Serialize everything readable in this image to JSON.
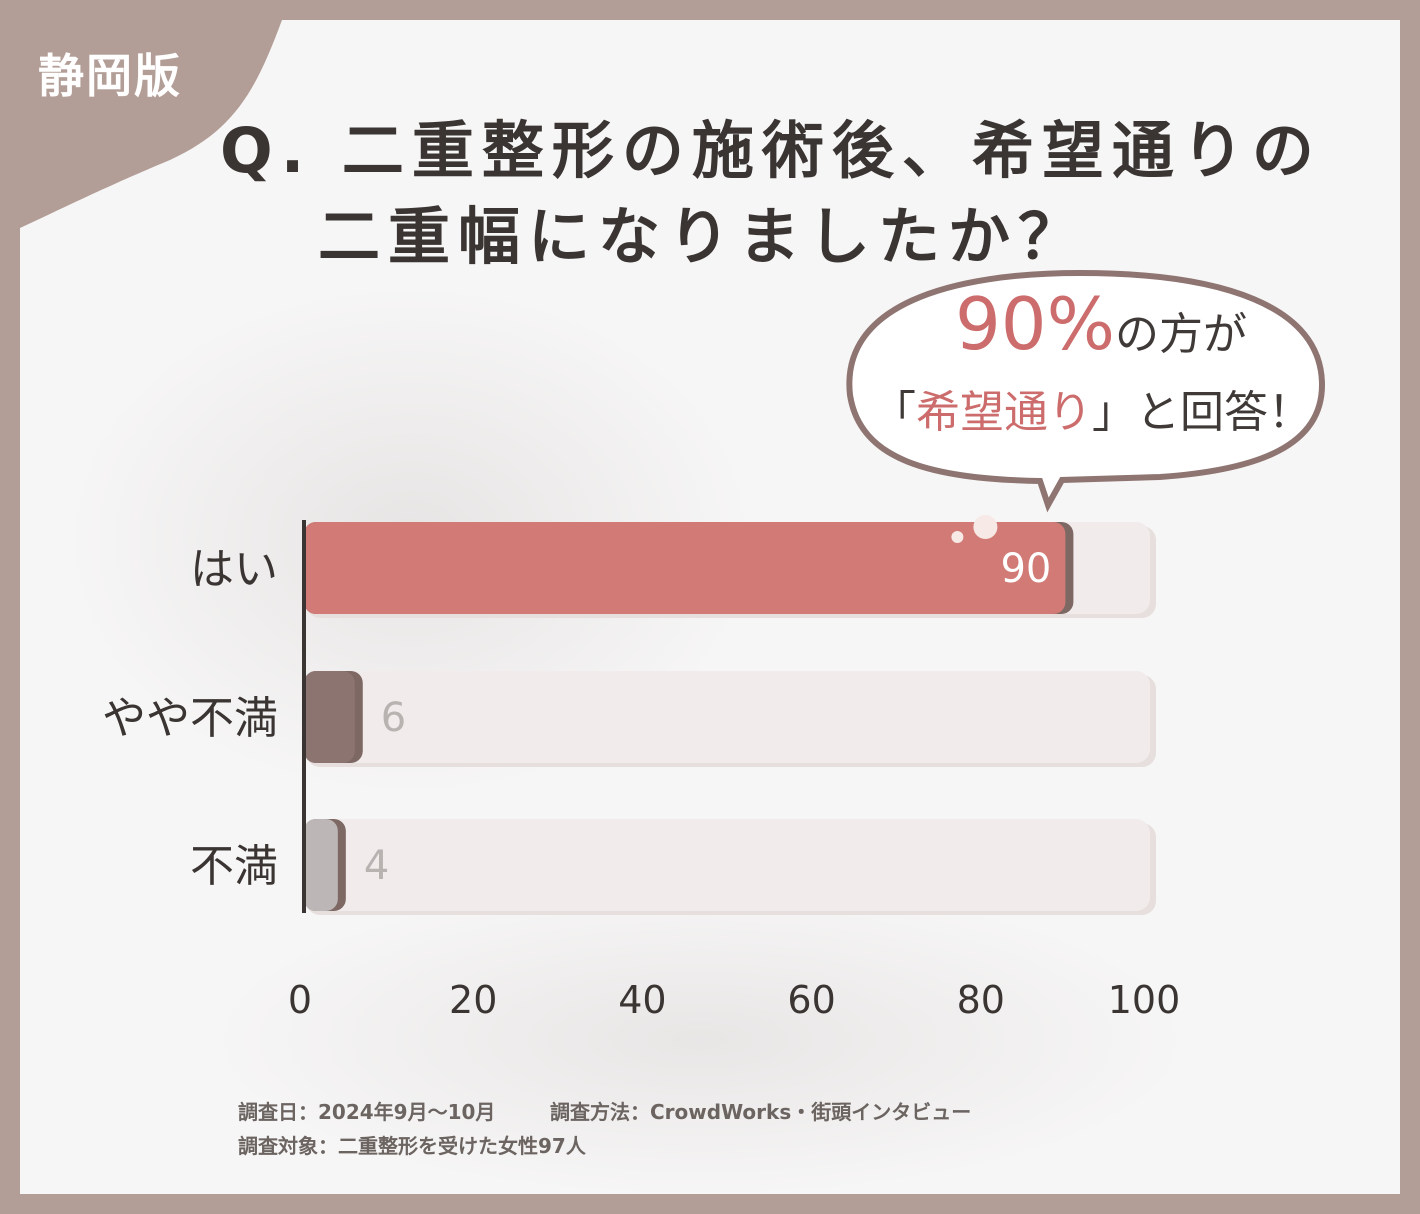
{
  "badge": {
    "label": "静岡版"
  },
  "title": {
    "line1": "Q. 二重整形の施術後、希望通りの",
    "line2": "二重幅になりましたか？"
  },
  "callout": {
    "percent": "90%",
    "line1_rest": "の方が",
    "line2_open": "「",
    "line2_highlight": "希望通り",
    "line2_close": "」と回答！"
  },
  "chart_data": {
    "type": "bar",
    "orientation": "horizontal",
    "categories": [
      "はい",
      "やや不満",
      "不満"
    ],
    "values": [
      90,
      6,
      4
    ],
    "colors": [
      "#d17a76",
      "#8c7471",
      "#bcb7b6"
    ],
    "xlim": [
      0,
      100
    ],
    "xticks": [
      0,
      20,
      40,
      60,
      80,
      100
    ],
    "grid": false,
    "legend": "none"
  },
  "footer": {
    "survey_date": "調査日：2024年9月〜10月",
    "survey_method": "調査方法：CrowdWorks・街頭インタビュー",
    "survey_target": "調査対象：二重整形を受けた女性97人"
  },
  "colors": {
    "frame": "#b39e97",
    "accent": "#cc6c6c",
    "track": "#f1eceb"
  }
}
